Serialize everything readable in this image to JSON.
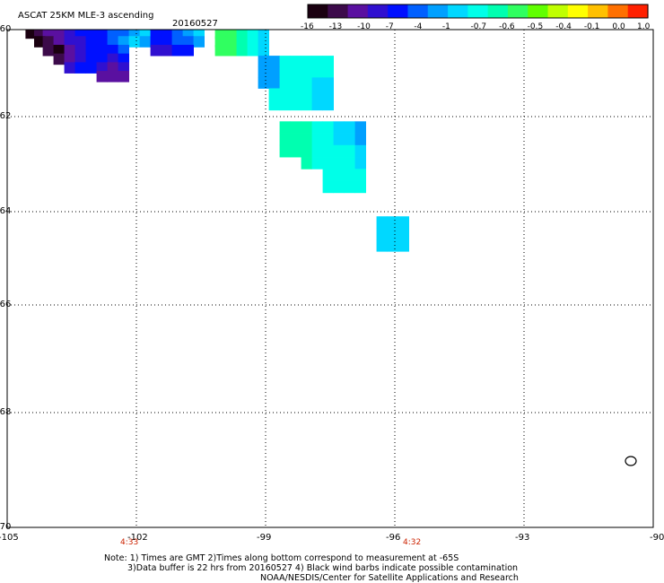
{
  "header": {
    "title": "ASCAT 25KM MLE-3 ascending",
    "date": "20160527"
  },
  "colorbar": {
    "colors": [
      "#1a0010",
      "#3c0a4a",
      "#5a10a0",
      "#3010d0",
      "#0010ff",
      "#0060ff",
      "#00a0ff",
      "#00d8ff",
      "#00ffe8",
      "#00ffb0",
      "#30ff60",
      "#60ff00",
      "#c0ff00",
      "#ffff00",
      "#ffc000",
      "#ff7000",
      "#ff2000"
    ],
    "labels": [
      "-16",
      "-13",
      "-10",
      "-7",
      "-4",
      "-1",
      "-0.7",
      "-0.6",
      "-0.5",
      "-0.4",
      "-0.1",
      "0.0",
      "1.0"
    ]
  },
  "axes": {
    "lon_labels": [
      "-105",
      "-102",
      "-99",
      "-96",
      "-93",
      "-90"
    ],
    "lat_labels": [
      "-60",
      "-62",
      "-64",
      "-66",
      "-68",
      "-70"
    ]
  },
  "time_labels": [
    "4:33",
    "4:32"
  ],
  "cells": [
    {
      "lon": -104.45,
      "lat": -60.05,
      "color": "#1a0010"
    },
    {
      "lon": -104.25,
      "lat": -60.05,
      "color": "#3c0a4a"
    },
    {
      "lon": -104.05,
      "lat": -60.05,
      "color": "#5a10a0"
    },
    {
      "lon": -103.8,
      "lat": -60.05,
      "color": "#5a10a0"
    },
    {
      "lon": -103.55,
      "lat": -60.05,
      "color": "#3010d0"
    },
    {
      "lon": -103.3,
      "lat": -60.05,
      "color": "#0010ff"
    },
    {
      "lon": -103.05,
      "lat": -60.05,
      "color": "#0010ff"
    },
    {
      "lon": -102.8,
      "lat": -60.05,
      "color": "#0010ff"
    },
    {
      "lon": -102.55,
      "lat": -60.05,
      "color": "#0060ff"
    },
    {
      "lon": -102.3,
      "lat": -60.05,
      "color": "#0060ff"
    },
    {
      "lon": -102.05,
      "lat": -60.05,
      "color": "#00a0ff"
    },
    {
      "lon": -101.8,
      "lat": -60.05,
      "color": "#00d8ff"
    },
    {
      "lon": -101.55,
      "lat": -60.05,
      "color": "#0010ff"
    },
    {
      "lon": -101.3,
      "lat": -60.05,
      "color": "#0010ff"
    },
    {
      "lon": -101.05,
      "lat": -60.05,
      "color": "#0060ff"
    },
    {
      "lon": -100.8,
      "lat": -60.05,
      "color": "#00a0ff"
    },
    {
      "lon": -100.55,
      "lat": -60.05,
      "color": "#00d8ff"
    },
    {
      "lon": -104.25,
      "lat": -60.25,
      "color": "#1a0010"
    },
    {
      "lon": -104.05,
      "lat": -60.25,
      "color": "#3c0a4a"
    },
    {
      "lon": -103.8,
      "lat": -60.25,
      "color": "#5a10a0"
    },
    {
      "lon": -103.55,
      "lat": -60.25,
      "color": "#3010d0"
    },
    {
      "lon": -103.3,
      "lat": -60.25,
      "color": "#3010d0"
    },
    {
      "lon": -103.05,
      "lat": -60.25,
      "color": "#0010ff"
    },
    {
      "lon": -102.8,
      "lat": -60.25,
      "color": "#0010ff"
    },
    {
      "lon": -102.55,
      "lat": -60.25,
      "color": "#0060ff"
    },
    {
      "lon": -102.3,
      "lat": -60.25,
      "color": "#00a0ff"
    },
    {
      "lon": -102.05,
      "lat": -60.25,
      "color": "#00d8ff"
    },
    {
      "lon": -101.8,
      "lat": -60.25,
      "color": "#00a0ff"
    },
    {
      "lon": -101.55,
      "lat": -60.25,
      "color": "#0010ff"
    },
    {
      "lon": -101.3,
      "lat": -60.25,
      "color": "#0010ff"
    },
    {
      "lon": -101.05,
      "lat": -60.25,
      "color": "#0060ff"
    },
    {
      "lon": -100.8,
      "lat": -60.25,
      "color": "#0060ff"
    },
    {
      "lon": -100.55,
      "lat": -60.25,
      "color": "#00a0ff"
    },
    {
      "lon": -104.05,
      "lat": -60.45,
      "color": "#3c0a4a"
    },
    {
      "lon": -103.8,
      "lat": -60.45,
      "color": "#1a0010"
    },
    {
      "lon": -103.55,
      "lat": -60.45,
      "color": "#5a10a0"
    },
    {
      "lon": -103.3,
      "lat": -60.45,
      "color": "#3010d0"
    },
    {
      "lon": -103.05,
      "lat": -60.45,
      "color": "#0010ff"
    },
    {
      "lon": -102.8,
      "lat": -60.45,
      "color": "#0010ff"
    },
    {
      "lon": -102.55,
      "lat": -60.45,
      "color": "#0010ff"
    },
    {
      "lon": -102.3,
      "lat": -60.45,
      "color": "#0060ff"
    },
    {
      "lon": -101.55,
      "lat": -60.45,
      "color": "#3010d0"
    },
    {
      "lon": -101.3,
      "lat": -60.45,
      "color": "#3010d0"
    },
    {
      "lon": -101.05,
      "lat": -60.45,
      "color": "#0010ff"
    },
    {
      "lon": -100.8,
      "lat": -60.45,
      "color": "#0010ff"
    },
    {
      "lon": -103.8,
      "lat": -60.65,
      "color": "#3c0a4a"
    },
    {
      "lon": -103.55,
      "lat": -60.65,
      "color": "#5a10a0"
    },
    {
      "lon": -103.3,
      "lat": -60.65,
      "color": "#3010d0"
    },
    {
      "lon": -103.05,
      "lat": -60.65,
      "color": "#0010ff"
    },
    {
      "lon": -102.8,
      "lat": -60.65,
      "color": "#0010ff"
    },
    {
      "lon": -102.55,
      "lat": -60.65,
      "color": "#3010d0"
    },
    {
      "lon": -102.3,
      "lat": -60.65,
      "color": "#0010ff"
    },
    {
      "lon": -103.55,
      "lat": -60.85,
      "color": "#3010d0"
    },
    {
      "lon": -103.3,
      "lat": -60.85,
      "color": "#0010ff"
    },
    {
      "lon": -103.05,
      "lat": -60.85,
      "color": "#0010ff"
    },
    {
      "lon": -102.8,
      "lat": -60.85,
      "color": "#3010d0"
    },
    {
      "lon": -102.55,
      "lat": -60.85,
      "color": "#5a10a0"
    },
    {
      "lon": -102.3,
      "lat": -60.85,
      "color": "#3010d0"
    },
    {
      "lon": -102.8,
      "lat": -61.05,
      "color": "#5a10a0"
    },
    {
      "lon": -102.55,
      "lat": -61.05,
      "color": "#5a10a0"
    },
    {
      "lon": -102.3,
      "lat": -61.05,
      "color": "#5a10a0"
    },
    {
      "lon": -100.05,
      "lat": -60.05,
      "color": "#30ff60"
    },
    {
      "lon": -99.8,
      "lat": -60.05,
      "color": "#30ff60"
    },
    {
      "lon": -99.55,
      "lat": -60.05,
      "color": "#00ffb0"
    },
    {
      "lon": -99.3,
      "lat": -60.05,
      "color": "#00ffe8"
    },
    {
      "lon": -99.05,
      "lat": -60.05,
      "color": "#00d8ff"
    },
    {
      "lon": -100.05,
      "lat": -60.25,
      "color": "#30ff60"
    },
    {
      "lon": -99.8,
      "lat": -60.25,
      "color": "#30ff60"
    },
    {
      "lon": -99.55,
      "lat": -60.25,
      "color": "#00ffb0"
    },
    {
      "lon": -99.3,
      "lat": -60.25,
      "color": "#00ffe8"
    },
    {
      "lon": -99.05,
      "lat": -60.25,
      "color": "#00d8ff"
    },
    {
      "lon": -100.05,
      "lat": -60.45,
      "color": "#30ff60"
    },
    {
      "lon": -99.8,
      "lat": -60.45,
      "color": "#30ff60"
    },
    {
      "lon": -99.55,
      "lat": -60.45,
      "color": "#00ffb0"
    },
    {
      "lon": -99.3,
      "lat": -60.45,
      "color": "#00ffe8"
    },
    {
      "lon": -99.05,
      "lat": -60.45,
      "color": "#00d8ff"
    },
    {
      "lon": -99.05,
      "lat": -60.7,
      "color": "#00a0ff"
    },
    {
      "lon": -98.8,
      "lat": -60.7,
      "color": "#00a0ff"
    },
    {
      "lon": -98.55,
      "lat": -60.7,
      "color": "#00ffe8"
    },
    {
      "lon": -98.3,
      "lat": -60.7,
      "color": "#00ffe8"
    },
    {
      "lon": -98.05,
      "lat": -60.7,
      "color": "#00ffe8"
    },
    {
      "lon": -97.8,
      "lat": -60.7,
      "color": "#00ffe8"
    },
    {
      "lon": -97.55,
      "lat": -60.7,
      "color": "#00ffe8"
    },
    {
      "lon": -99.05,
      "lat": -60.95,
      "color": "#00a0ff"
    },
    {
      "lon": -98.8,
      "lat": -60.95,
      "color": "#00a0ff"
    },
    {
      "lon": -98.55,
      "lat": -60.95,
      "color": "#00ffe8"
    },
    {
      "lon": -98.3,
      "lat": -60.95,
      "color": "#00ffe8"
    },
    {
      "lon": -98.05,
      "lat": -60.95,
      "color": "#00ffe8"
    },
    {
      "lon": -97.8,
      "lat": -60.95,
      "color": "#00ffe8"
    },
    {
      "lon": -97.55,
      "lat": -60.95,
      "color": "#00ffe8"
    },
    {
      "lon": -99.05,
      "lat": -61.2,
      "color": "#00a0ff"
    },
    {
      "lon": -98.8,
      "lat": -61.2,
      "color": "#00a0ff"
    },
    {
      "lon": -98.55,
      "lat": -61.2,
      "color": "#00ffe8"
    },
    {
      "lon": -98.3,
      "lat": -61.2,
      "color": "#00ffe8"
    },
    {
      "lon": -98.05,
      "lat": -61.2,
      "color": "#00ffe8"
    },
    {
      "lon": -97.8,
      "lat": -61.2,
      "color": "#00d8ff"
    },
    {
      "lon": -97.55,
      "lat": -61.2,
      "color": "#00d8ff"
    },
    {
      "lon": -98.8,
      "lat": -61.45,
      "color": "#00ffe8"
    },
    {
      "lon": -98.55,
      "lat": -61.45,
      "color": "#00ffe8"
    },
    {
      "lon": -98.3,
      "lat": -61.45,
      "color": "#00ffe8"
    },
    {
      "lon": -98.05,
      "lat": -61.45,
      "color": "#00ffe8"
    },
    {
      "lon": -97.8,
      "lat": -61.45,
      "color": "#00d8ff"
    },
    {
      "lon": -97.55,
      "lat": -61.45,
      "color": "#00d8ff"
    },
    {
      "lon": -98.8,
      "lat": -61.7,
      "color": "#00ffe8"
    },
    {
      "lon": -98.55,
      "lat": -61.7,
      "color": "#00ffe8"
    },
    {
      "lon": -98.3,
      "lat": -61.7,
      "color": "#00ffe8"
    },
    {
      "lon": -98.05,
      "lat": -61.7,
      "color": "#00ffe8"
    },
    {
      "lon": -97.8,
      "lat": -61.7,
      "color": "#00d8ff"
    },
    {
      "lon": -97.55,
      "lat": -61.7,
      "color": "#00d8ff"
    },
    {
      "lon": -98.55,
      "lat": -62.2,
      "color": "#00ffb0"
    },
    {
      "lon": -98.3,
      "lat": -62.2,
      "color": "#00ffb0"
    },
    {
      "lon": -98.05,
      "lat": -62.2,
      "color": "#00ffb0"
    },
    {
      "lon": -97.8,
      "lat": -62.2,
      "color": "#00ffe8"
    },
    {
      "lon": -97.55,
      "lat": -62.2,
      "color": "#00ffe8"
    },
    {
      "lon": -97.3,
      "lat": -62.2,
      "color": "#00d8ff"
    },
    {
      "lon": -97.05,
      "lat": -62.2,
      "color": "#00d8ff"
    },
    {
      "lon": -96.8,
      "lat": -62.2,
      "color": "#00a0ff"
    },
    {
      "lon": -98.55,
      "lat": -62.45,
      "color": "#00ffb0"
    },
    {
      "lon": -98.3,
      "lat": -62.45,
      "color": "#00ffb0"
    },
    {
      "lon": -98.05,
      "lat": -62.45,
      "color": "#00ffb0"
    },
    {
      "lon": -97.8,
      "lat": -62.45,
      "color": "#00ffe8"
    },
    {
      "lon": -97.55,
      "lat": -62.45,
      "color": "#00ffe8"
    },
    {
      "lon": -97.3,
      "lat": -62.45,
      "color": "#00d8ff"
    },
    {
      "lon": -97.05,
      "lat": -62.45,
      "color": "#00d8ff"
    },
    {
      "lon": -96.8,
      "lat": -62.45,
      "color": "#00a0ff"
    },
    {
      "lon": -98.55,
      "lat": -62.7,
      "color": "#00ffb0"
    },
    {
      "lon": -98.3,
      "lat": -62.7,
      "color": "#00ffb0"
    },
    {
      "lon": -98.05,
      "lat": -62.7,
      "color": "#00ffb0"
    },
    {
      "lon": -97.8,
      "lat": -62.7,
      "color": "#00ffe8"
    },
    {
      "lon": -97.55,
      "lat": -62.7,
      "color": "#00ffe8"
    },
    {
      "lon": -97.3,
      "lat": -62.7,
      "color": "#00ffe8"
    },
    {
      "lon": -97.05,
      "lat": -62.7,
      "color": "#00ffe8"
    },
    {
      "lon": -96.8,
      "lat": -62.7,
      "color": "#00d8ff"
    },
    {
      "lon": -98.05,
      "lat": -62.95,
      "color": "#00ffb0"
    },
    {
      "lon": -97.8,
      "lat": -62.95,
      "color": "#00ffe8"
    },
    {
      "lon": -97.55,
      "lat": -62.95,
      "color": "#00ffe8"
    },
    {
      "lon": -97.3,
      "lat": -62.95,
      "color": "#00ffe8"
    },
    {
      "lon": -97.05,
      "lat": -62.95,
      "color": "#00ffe8"
    },
    {
      "lon": -96.8,
      "lat": -62.95,
      "color": "#00d8ff"
    },
    {
      "lon": -97.55,
      "lat": -63.2,
      "color": "#00ffe8"
    },
    {
      "lon": -97.3,
      "lat": -63.2,
      "color": "#00ffe8"
    },
    {
      "lon": -97.05,
      "lat": -63.2,
      "color": "#00ffe8"
    },
    {
      "lon": -96.8,
      "lat": -63.2,
      "color": "#00ffe8"
    },
    {
      "lon": -97.55,
      "lat": -63.45,
      "color": "#00ffe8"
    },
    {
      "lon": -97.3,
      "lat": -63.45,
      "color": "#00ffe8"
    },
    {
      "lon": -97.05,
      "lat": -63.45,
      "color": "#00ffe8"
    },
    {
      "lon": -96.8,
      "lat": -63.45,
      "color": "#00ffe8"
    },
    {
      "lon": -96.3,
      "lat": -64.2,
      "color": "#00d8ff"
    },
    {
      "lon": -96.05,
      "lat": -64.2,
      "color": "#00d8ff"
    },
    {
      "lon": -95.8,
      "lat": -64.2,
      "color": "#00d8ff"
    },
    {
      "lon": -96.3,
      "lat": -64.45,
      "color": "#00d8ff"
    },
    {
      "lon": -96.05,
      "lat": -64.45,
      "color": "#00d8ff"
    },
    {
      "lon": -95.8,
      "lat": -64.45,
      "color": "#00d8ff"
    },
    {
      "lon": -96.3,
      "lat": -64.7,
      "color": "#00d8ff"
    },
    {
      "lon": -96.05,
      "lat": -64.7,
      "color": "#00d8ff"
    },
    {
      "lon": -95.8,
      "lat": -64.7,
      "color": "#00d8ff"
    }
  ],
  "notes": {
    "line1": "Note: 1) Times are GMT 2)Times along bottom correspond to measurement at -65S",
    "line2": "3)Data buffer is 22 hrs from 20160527 4) Black wind barbs indicate possible contamination",
    "line3": "NOAA/NESDIS/Center for Satellite Applications and Research"
  }
}
